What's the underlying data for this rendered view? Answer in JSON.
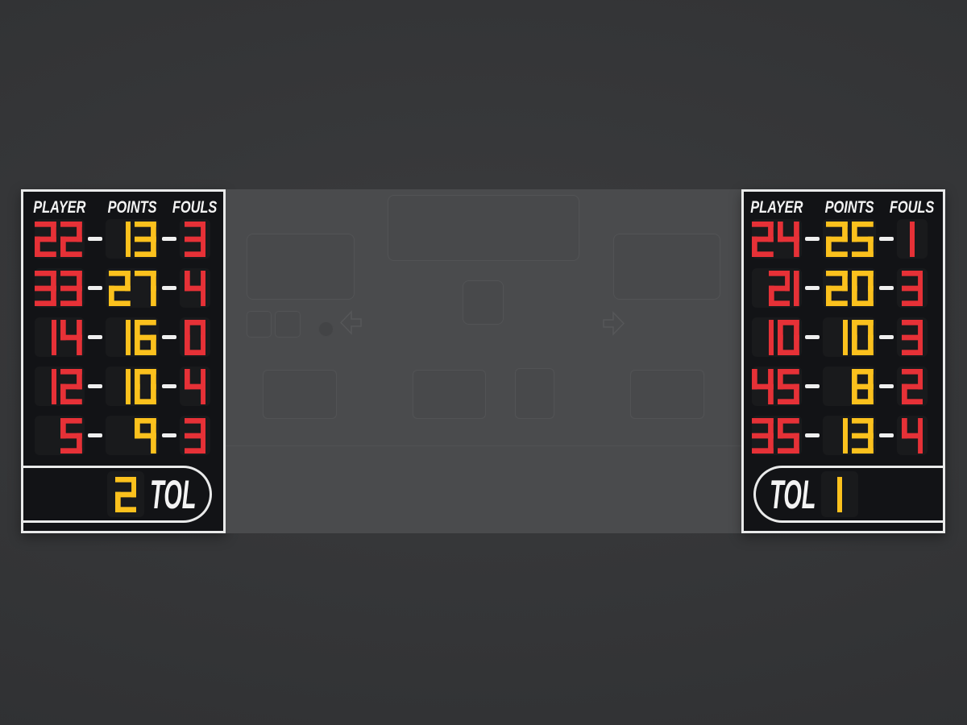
{
  "colors": {
    "red": "#e63137",
    "yellow": "#fbc11d",
    "white": "#f3f3f3",
    "panel_bg": "#121316",
    "cell_bg": "#191a1c",
    "panel_border": "#e9eaea",
    "ghost_bg": "#4a4b4d"
  },
  "left_panel": {
    "headers": [
      "PLAYER",
      "POINTS",
      "FOULS"
    ],
    "rows": [
      {
        "player": "22",
        "points": "13",
        "fouls": "3"
      },
      {
        "player": "33",
        "points": "27",
        "fouls": "4"
      },
      {
        "player": "14",
        "points": "16",
        "fouls": "0"
      },
      {
        "player": "12",
        "points": "10",
        "fouls": "4"
      },
      {
        "player": "5",
        "points": "9",
        "fouls": "3"
      }
    ],
    "tol": {
      "label": "TOL",
      "value": "2"
    }
  },
  "right_panel": {
    "headers": [
      "PLAYER",
      "POINTS",
      "FOULS"
    ],
    "rows": [
      {
        "player": "24",
        "points": "25",
        "fouls": "1"
      },
      {
        "player": "21",
        "points": "20",
        "fouls": "3"
      },
      {
        "player": "10",
        "points": "10",
        "fouls": "3"
      },
      {
        "player": "45",
        "points": "8",
        "fouls": "2"
      },
      {
        "player": "35",
        "points": "13",
        "fouls": "4"
      }
    ],
    "tol": {
      "label": "TOL",
      "value": "1"
    }
  }
}
